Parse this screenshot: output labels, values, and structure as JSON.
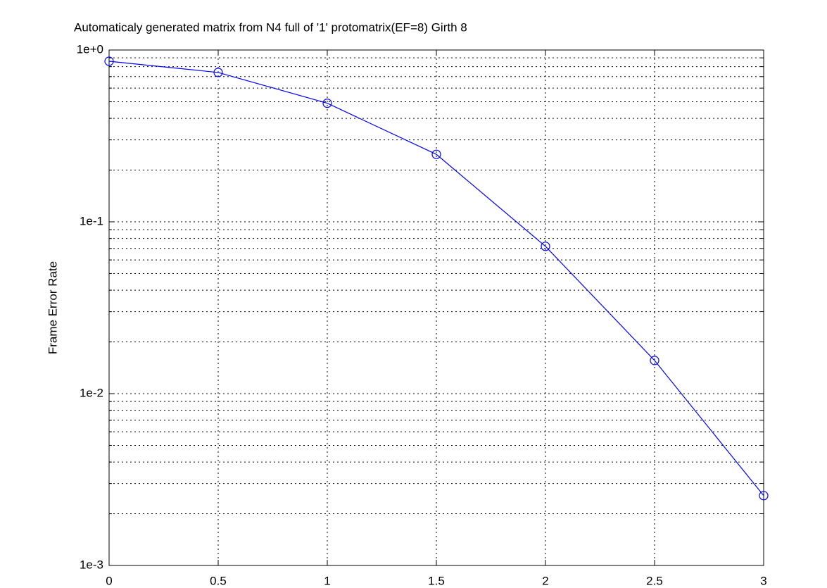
{
  "chart_data": {
    "type": "line",
    "title": "Automaticaly generated matrix from N4 full of '1' protomatrix(EF=8) Girth 8",
    "y_label": "Frame Error Rate",
    "x": [
      0,
      0.5,
      1,
      1.5,
      2,
      2.5,
      3
    ],
    "values": [
      0.86,
      0.74,
      0.49,
      0.247,
      0.072,
      0.0156,
      0.00255
    ],
    "color": "#0000ff",
    "marker": "circle",
    "xlim": [
      0,
      3
    ],
    "xticks": [
      0,
      0.5,
      1,
      1.5,
      2,
      2.5,
      3
    ],
    "ylim": [
      0.001,
      1
    ],
    "yticks": [
      {
        "value": 0.001,
        "label": "1e-3"
      },
      {
        "value": 0.01,
        "label": "1e-2"
      },
      {
        "value": 0.1,
        "label": "1e-1"
      },
      {
        "value": 1,
        "label": "1e+0"
      }
    ],
    "log_y": true,
    "grid": true,
    "minor_grid": true
  }
}
